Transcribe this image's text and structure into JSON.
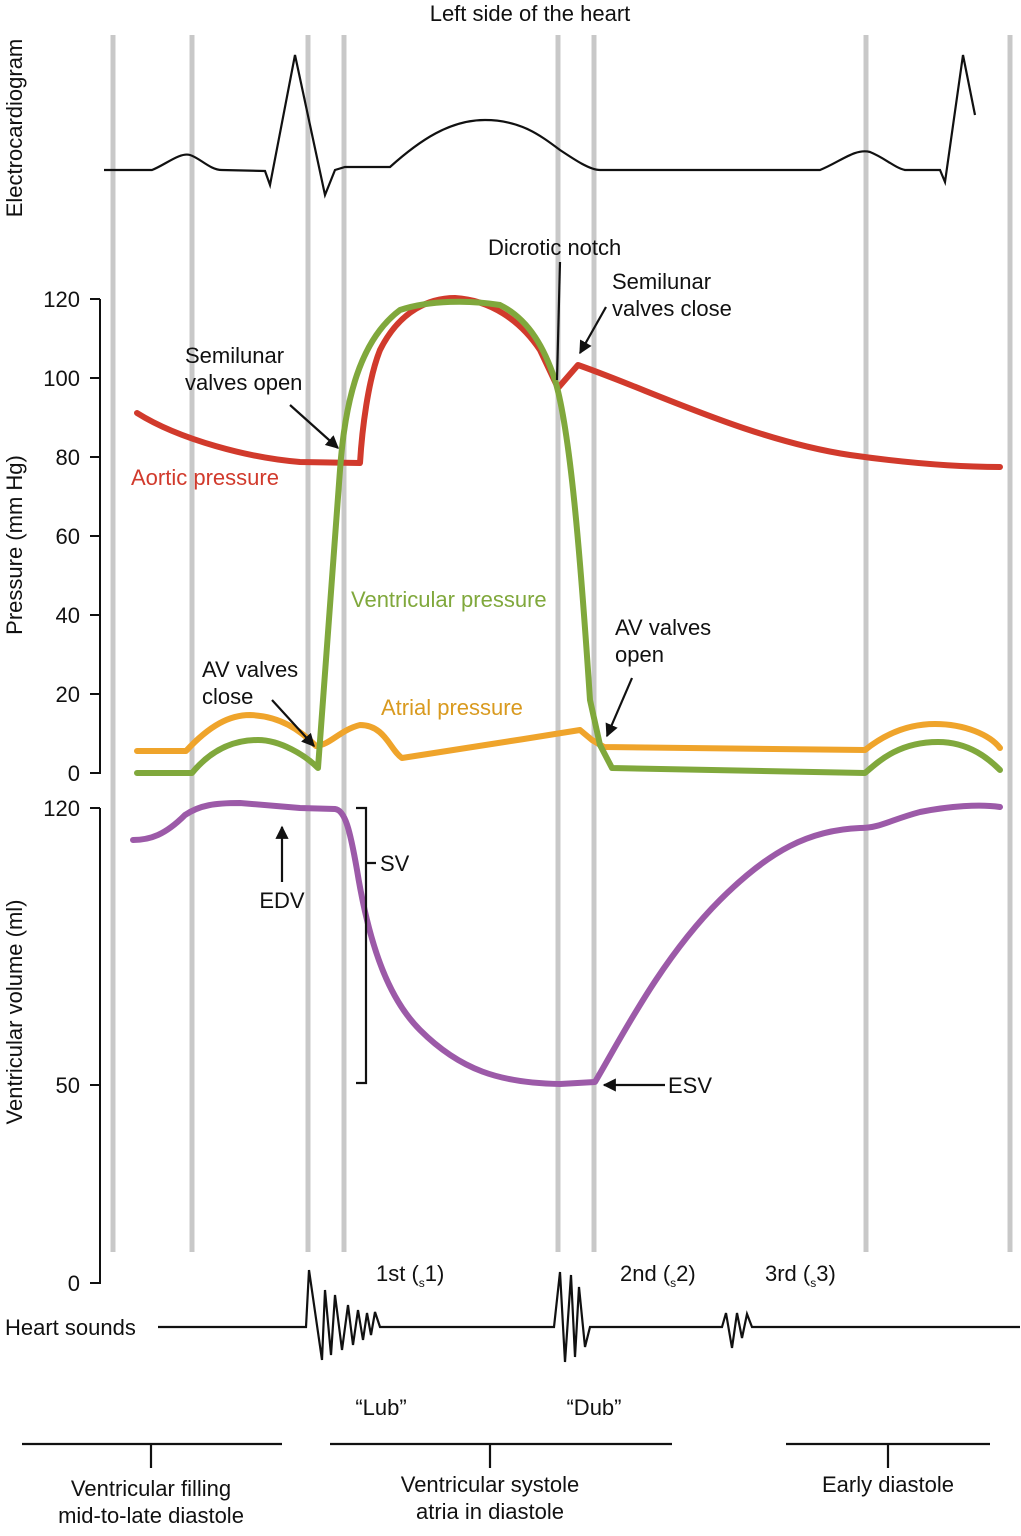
{
  "title": "Left side of the heart",
  "ecg_label": "Electrocardiogram",
  "pressure_axis": {
    "label": "Pressure (mm Hg)",
    "ticks": [
      "0",
      "20",
      "40",
      "60",
      "80",
      "100",
      "120"
    ]
  },
  "volume_axis": {
    "label": "Ventricular volume (ml)",
    "ticks": [
      "0",
      "50",
      "120"
    ]
  },
  "curves": {
    "aortic": {
      "label": "Aortic pressure",
      "color": "#d13a2c"
    },
    "ventricular": {
      "label": "Ventricular pressure",
      "color": "#80a83c"
    },
    "atrial": {
      "label": "Atrial pressure",
      "color": "#efa42b"
    },
    "volume": {
      "color": "#9c5aa8"
    }
  },
  "annotations": {
    "dicrotic_notch": "Dicrotic notch",
    "semilunar_close": [
      "Semilunar",
      "valves close"
    ],
    "semilunar_open": [
      "Semilunar",
      "valves open"
    ],
    "av_close": [
      "AV valves",
      "close"
    ],
    "av_open": [
      "AV valves",
      "open"
    ],
    "sv": "SV",
    "edv": "EDV",
    "esv": "ESV"
  },
  "heart_sounds": {
    "label": "Heart sounds",
    "first": {
      "pre": "1st (",
      "sub": "s",
      "post": "1)"
    },
    "second": {
      "pre": "2nd (",
      "sub": "s",
      "post": "2)"
    },
    "third": {
      "pre": "3rd (",
      "sub": "s",
      "post": "3)"
    },
    "lub": "“Lub”",
    "dub": "“Dub”"
  },
  "phases": [
    {
      "lines": [
        "Ventricular filling",
        "mid-to-late diastole"
      ]
    },
    {
      "lines": [
        "Ventricular systole",
        "atria in diastole"
      ]
    },
    {
      "lines": [
        "Early diastole"
      ]
    }
  ]
}
